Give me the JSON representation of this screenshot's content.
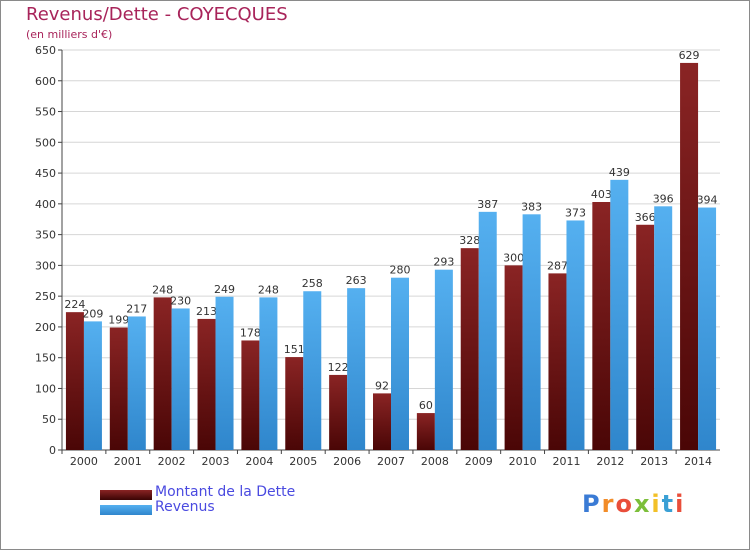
{
  "header": {
    "title": "Revenus/Dette - COYECQUES",
    "subtitle": "(en milliers d'€)"
  },
  "chart_data": {
    "type": "bar",
    "categories": [
      "2000",
      "2001",
      "2002",
      "2003",
      "2004",
      "2005",
      "2006",
      "2007",
      "2008",
      "2009",
      "2010",
      "2011",
      "2012",
      "2013",
      "2014"
    ],
    "series": [
      {
        "name": "Montant de la Dette",
        "values": [
          224,
          199,
          248,
          213,
          178,
          151,
          122,
          92,
          60,
          328,
          300,
          287,
          403,
          366,
          629
        ],
        "color": "#7a1414"
      },
      {
        "name": "Revenus",
        "values": [
          209,
          217,
          230,
          249,
          248,
          258,
          263,
          280,
          293,
          387,
          383,
          373,
          439,
          396,
          394
        ],
        "color": "#4aa3e6"
      }
    ],
    "ylim": [
      0,
      650
    ],
    "yticks": [
      0,
      50,
      100,
      150,
      200,
      250,
      300,
      350,
      400,
      450,
      500,
      550,
      600,
      650
    ],
    "grid": true,
    "legend_position": "bottom-left"
  },
  "logo": {
    "text": "Proxiti"
  }
}
